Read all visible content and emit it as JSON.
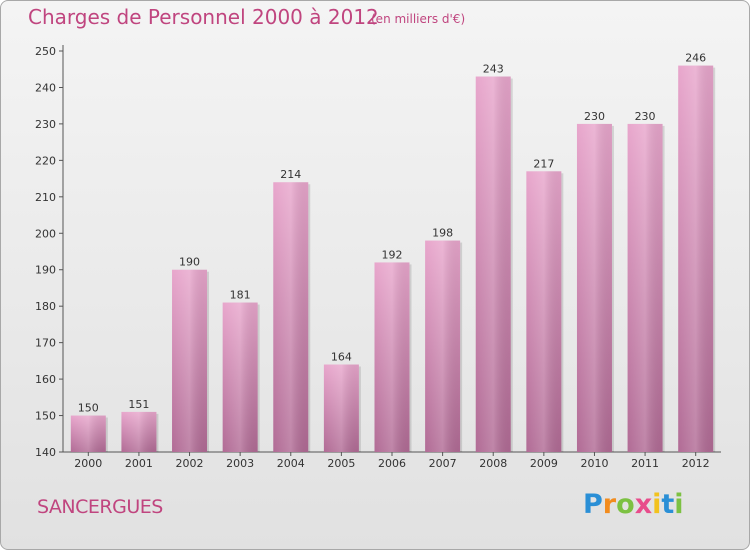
{
  "chart_data": {
    "type": "bar",
    "title": "Charges de Personnel 2000 à 2012",
    "subtitle": "(en milliers d'€)",
    "categories": [
      "2000",
      "2001",
      "2002",
      "2003",
      "2004",
      "2005",
      "2006",
      "2007",
      "2008",
      "2009",
      "2010",
      "2011",
      "2012"
    ],
    "values": [
      150,
      151,
      190,
      181,
      214,
      164,
      192,
      198,
      243,
      217,
      230,
      230,
      246
    ],
    "ylim": [
      140,
      250
    ],
    "yticks": [
      140,
      150,
      160,
      170,
      180,
      190,
      200,
      210,
      220,
      230,
      240,
      250
    ],
    "grid": false,
    "bar_color": "#d88bb6"
  },
  "commune": "SANCERGUES",
  "logo": {
    "letters": [
      "P",
      "r",
      "o",
      "x",
      "i",
      "t",
      "i"
    ],
    "colors": [
      "#2a8fd6",
      "#f28c1e",
      "#7cc142",
      "#e84c8b",
      "#f2c21e",
      "#2a8fd6",
      "#7cc142"
    ]
  }
}
